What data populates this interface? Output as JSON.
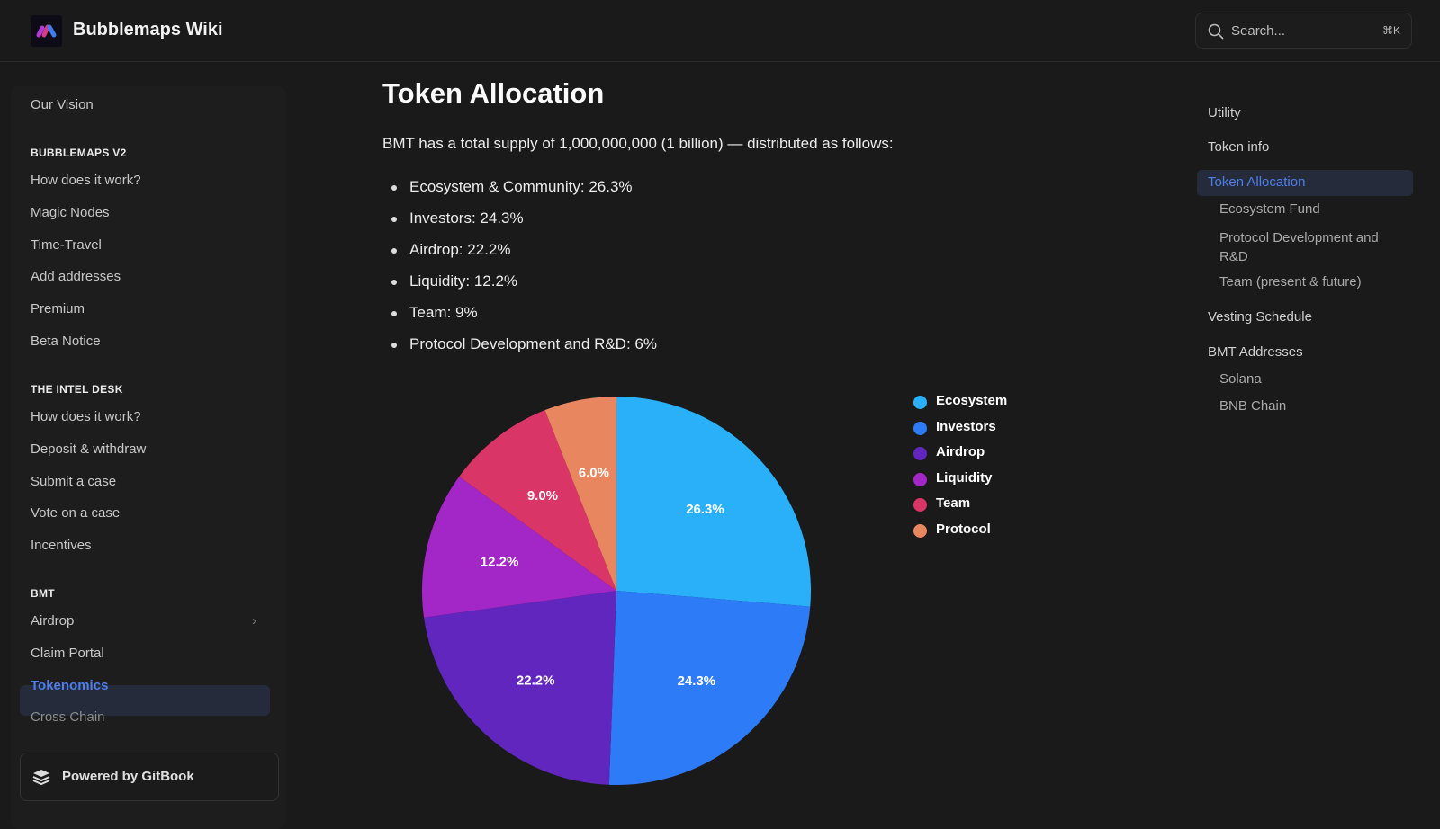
{
  "header": {
    "title": "Bubblemaps Wiki",
    "search_placeholder": "Search...",
    "search_shortcut": "⌘K"
  },
  "sidebar": {
    "items": [
      {
        "type": "item",
        "label": "Our Vision"
      },
      {
        "type": "head",
        "label": "BUBBLEMAPS V2"
      },
      {
        "type": "item",
        "label": "How does it work?"
      },
      {
        "type": "item",
        "label": "Magic Nodes"
      },
      {
        "type": "item",
        "label": "Time-Travel"
      },
      {
        "type": "item",
        "label": "Add addresses"
      },
      {
        "type": "item",
        "label": "Premium"
      },
      {
        "type": "item",
        "label": "Beta Notice"
      },
      {
        "type": "head",
        "label": "THE INTEL DESK"
      },
      {
        "type": "item",
        "label": "How does it work?"
      },
      {
        "type": "item",
        "label": "Deposit & withdraw"
      },
      {
        "type": "item",
        "label": "Submit a case"
      },
      {
        "type": "item",
        "label": "Vote on a case"
      },
      {
        "type": "item",
        "label": "Incentives"
      },
      {
        "type": "head",
        "label": "BMT"
      },
      {
        "type": "item",
        "label": "Airdrop",
        "chevron": true
      },
      {
        "type": "item",
        "label": "Claim Portal"
      },
      {
        "type": "item",
        "label": "Tokenomics",
        "active": true
      },
      {
        "type": "item",
        "label": "Cross Chain"
      }
    ],
    "powered_by": "Powered by GitBook"
  },
  "main": {
    "title": "Token Allocation",
    "intro": "BMT has a total supply of 1,000,000,000 (1 billion) — distributed as follows:",
    "bullets": [
      "Ecosystem & Community: 26.3%",
      "Investors: 24.3%",
      "Airdrop: 22.2%",
      "Liquidity: 12.2%",
      "Team: 9%",
      "Protocol Development and R&D: 6%"
    ]
  },
  "chart_data": {
    "type": "pie",
    "categories": [
      "Ecosystem",
      "Investors",
      "Airdrop",
      "Liquidity",
      "Team",
      "Protocol"
    ],
    "values": [
      26.3,
      24.3,
      22.2,
      12.2,
      9.0,
      6.0
    ],
    "labels": [
      "26.3%",
      "24.3%",
      "22.2%",
      "12.2%",
      "9.0%",
      "6.0%"
    ],
    "colors": [
      "#29b0f8",
      "#2e7bf8",
      "#6126bd",
      "#a326c6",
      "#da3567",
      "#e8875f"
    ],
    "legend": "right",
    "start": "top",
    "direction": "clockwise"
  },
  "toc": {
    "items": [
      {
        "label": "Utility",
        "level": 1
      },
      {
        "label": "Token info",
        "level": 1
      },
      {
        "label": "Token Allocation",
        "level": 1,
        "active": true
      },
      {
        "label": "Ecosystem Fund",
        "level": 2
      },
      {
        "label": "Protocol Development and R&D",
        "level": 2
      },
      {
        "label": "Team (present & future)",
        "level": 2
      },
      {
        "label": "Vesting Schedule",
        "level": 1
      },
      {
        "label": "BMT Addresses",
        "level": 1
      },
      {
        "label": "Solana",
        "level": 2
      },
      {
        "label": "BNB Chain",
        "level": 2
      }
    ]
  },
  "colors": {
    "accent": "#4e7fe8",
    "background": "#1a1a1b"
  }
}
